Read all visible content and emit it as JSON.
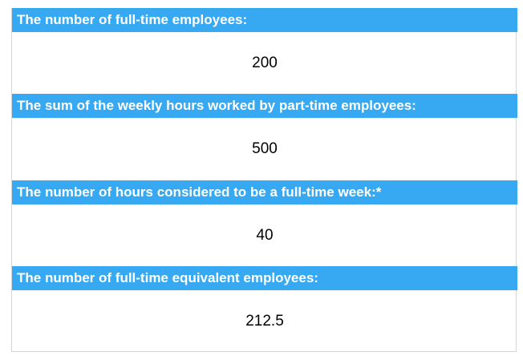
{
  "fields": [
    {
      "label": "The number of full-time employees:",
      "value": "200"
    },
    {
      "label": "The sum of the weekly hours worked by part-time employees:",
      "value": "500"
    },
    {
      "label": "The number of hours considered to be a full-time week:*",
      "value": "40"
    },
    {
      "label": "The number of full-time equivalent employees:",
      "value": "212.5"
    }
  ],
  "colors": {
    "header_bg": "#36a9f2",
    "header_text": "#ffffff",
    "value_text": "#000000"
  }
}
